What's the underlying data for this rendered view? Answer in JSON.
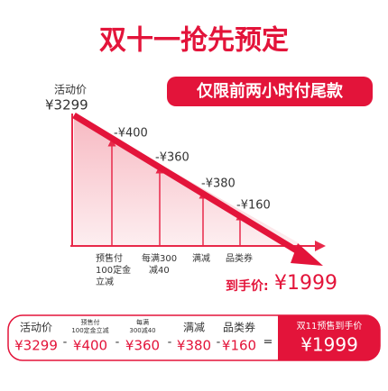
{
  "header": {
    "title": "双十一抢先预定",
    "badge": "仅限前两小时付尾款"
  },
  "start": {
    "label": "活动价",
    "price": "¥3299"
  },
  "steps": [
    {
      "amount": "-¥400",
      "label": [
        "预售付",
        "100定金",
        "立减"
      ]
    },
    {
      "amount": "-¥360",
      "label": [
        "每满300",
        "减40"
      ]
    },
    {
      "amount": "-¥380",
      "label": [
        "满减"
      ]
    },
    {
      "amount": "-¥160",
      "label": [
        "品类券"
      ]
    }
  ],
  "final": {
    "label": "到手价:",
    "price": "¥1999"
  },
  "summary": {
    "items": [
      {
        "label": [
          "活动价"
        ],
        "price": "¥3299"
      },
      {
        "label": [
          "预售付",
          "100定金立减"
        ],
        "price": "¥400"
      },
      {
        "label": [
          "每满",
          "300减40"
        ],
        "price": "¥360"
      },
      {
        "label": [
          "满减"
        ],
        "price": "¥380"
      },
      {
        "label": [
          "品类券"
        ],
        "price": "¥160"
      }
    ],
    "operators": [
      "-",
      "-",
      "-",
      "-",
      "="
    ],
    "final_label": "双11预售到手价",
    "final_price": "¥1999"
  }
}
